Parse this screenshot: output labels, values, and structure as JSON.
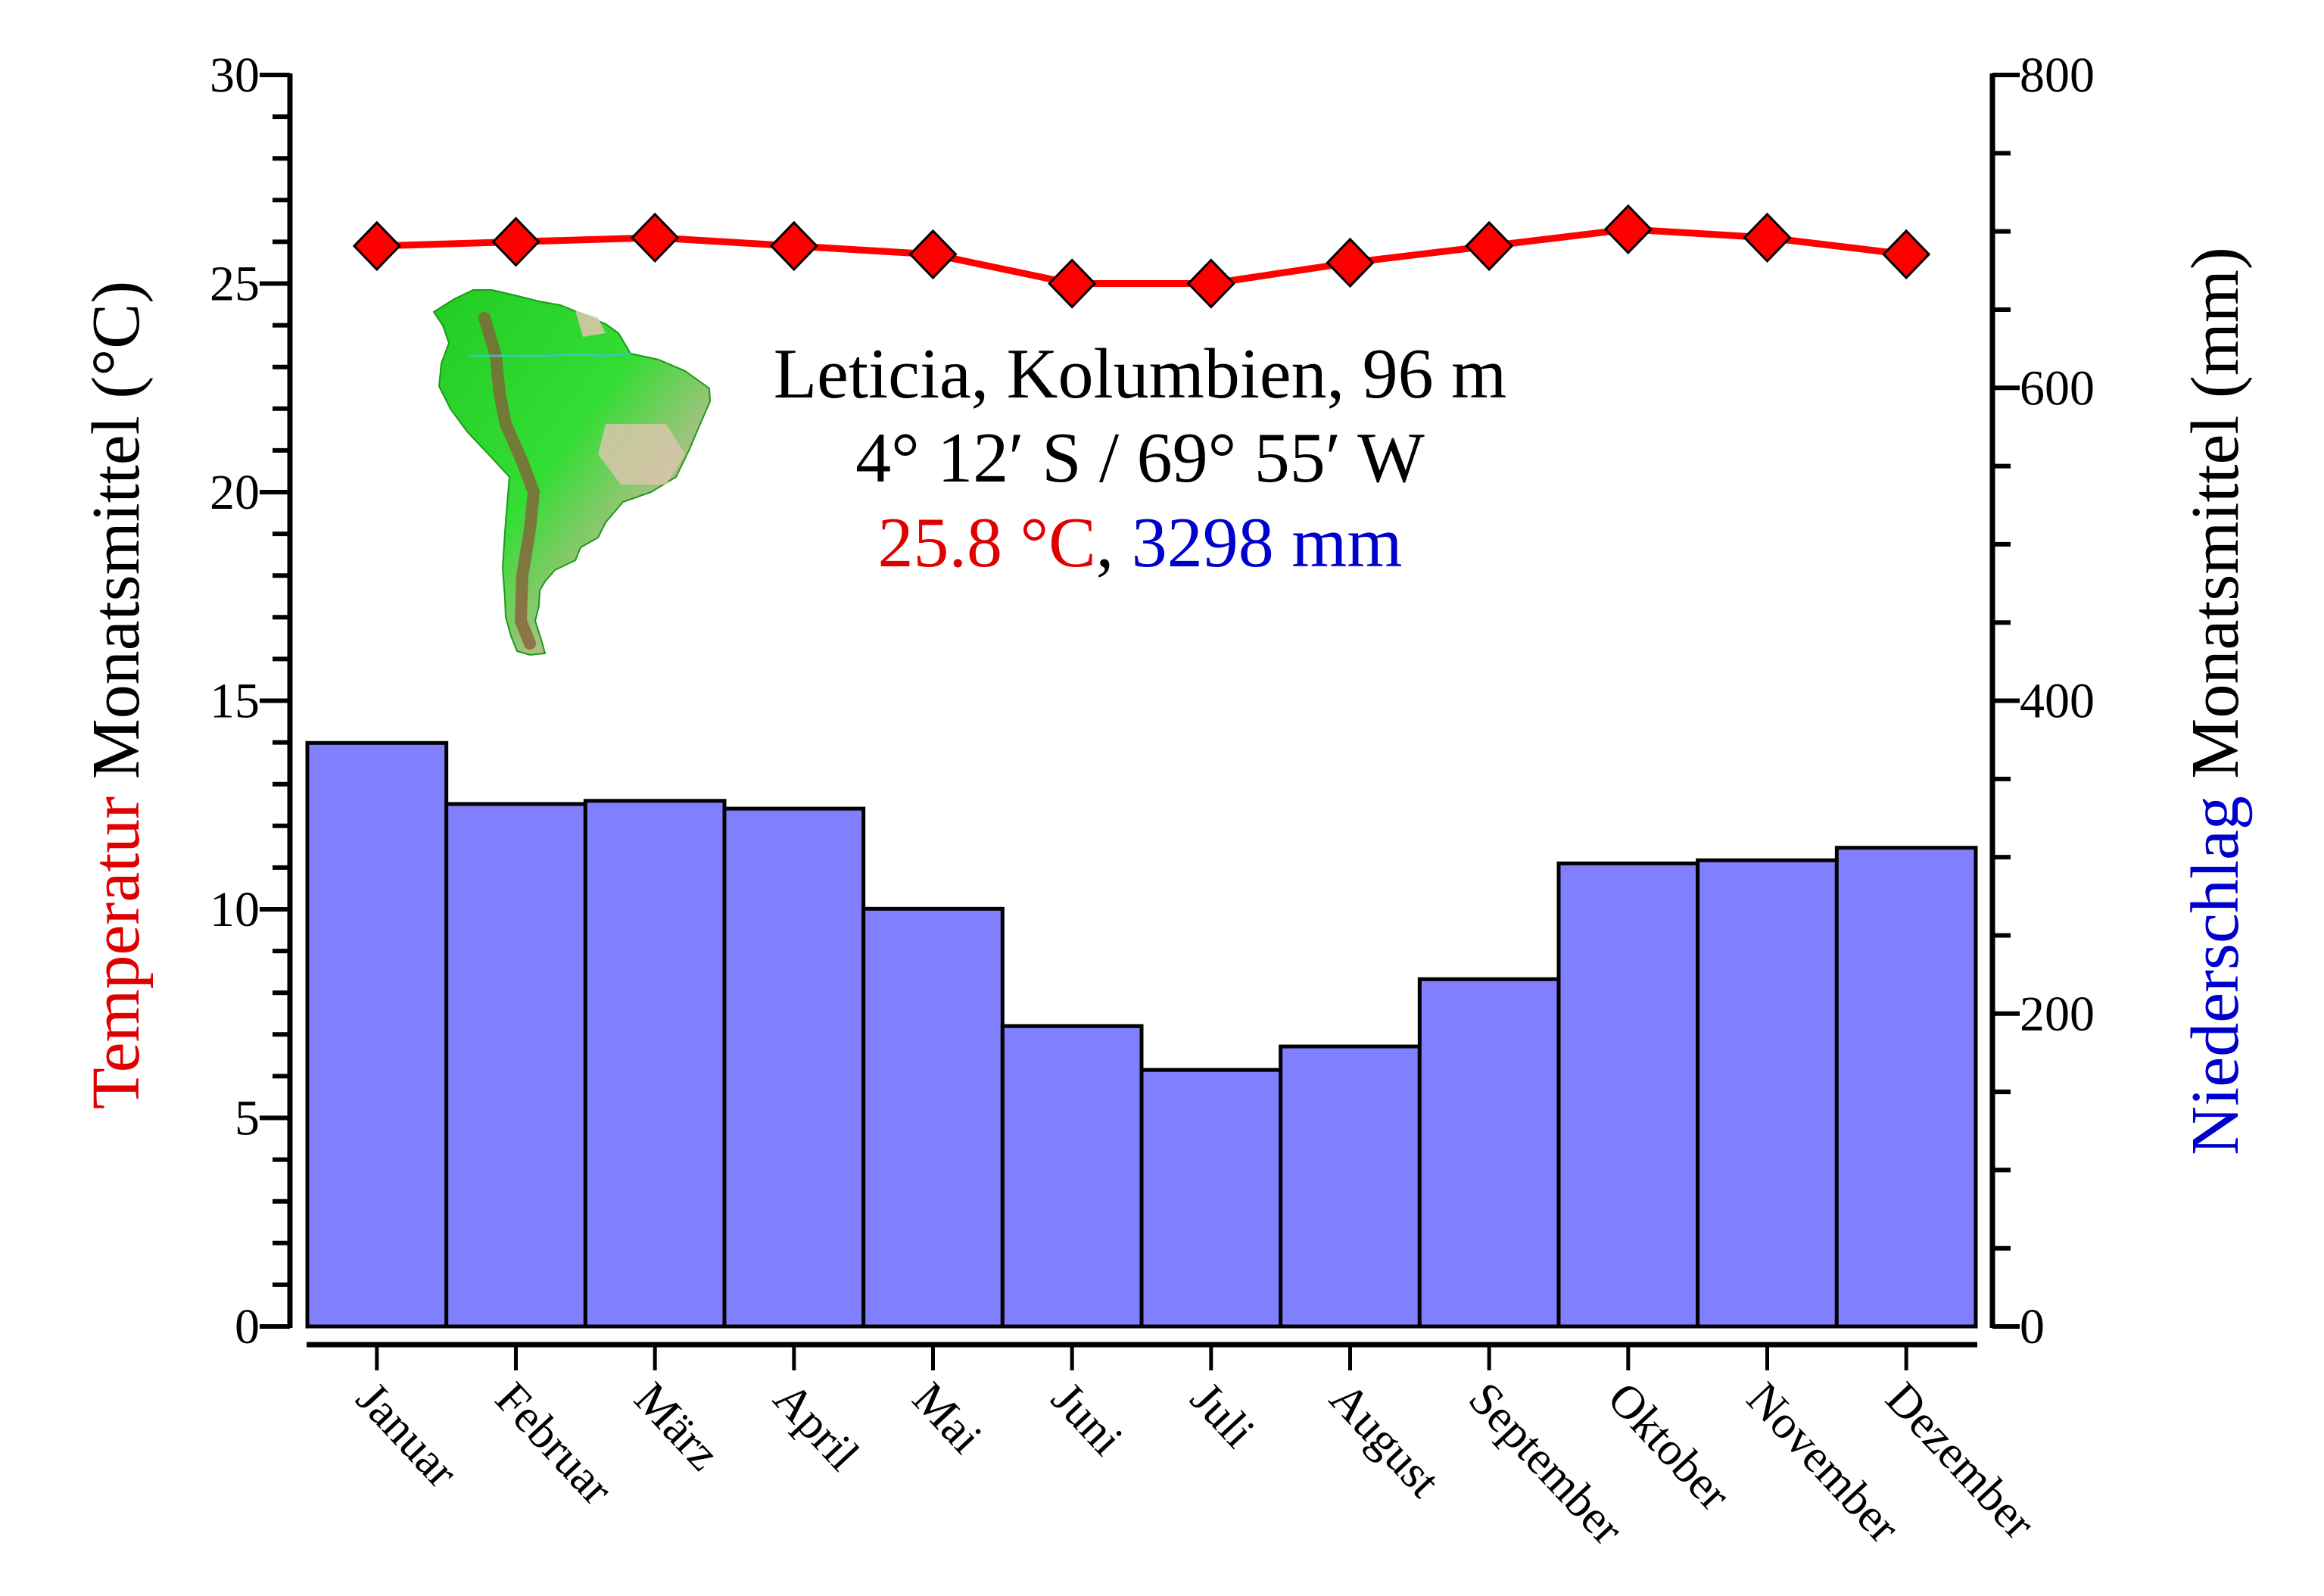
{
  "chart_data": {
    "type": "bar+line",
    "title": "Leticia, Kolumbien, 96 m",
    "subtitle": "4° 12′ S / 69° 55′ W",
    "summary": {
      "temperature_label": "25.8 °C",
      "separator": ", ",
      "precipitation_label": "3298 mm"
    },
    "categories": [
      "Januar",
      "Februar",
      "März",
      "April",
      "Mai",
      "Juni",
      "Juli",
      "August",
      "September",
      "Oktober",
      "November",
      "Dezember"
    ],
    "series": [
      {
        "name": "Temperatur",
        "type": "line",
        "axis": "left",
        "unit": "°C",
        "color": "#ff0000",
        "marker": "diamond",
        "values": [
          25.9,
          26.0,
          26.1,
          25.9,
          25.7,
          25.0,
          25.0,
          25.5,
          25.9,
          26.3,
          26.1,
          25.7
        ]
      },
      {
        "name": "Niederschlag",
        "type": "bar",
        "axis": "right",
        "unit": "mm",
        "color": "#8080ff",
        "values": [
          373,
          334,
          336,
          331,
          267,
          192,
          164,
          179,
          222,
          296,
          298,
          306
        ]
      }
    ],
    "y_left": {
      "label_colored": "Temperatur",
      "label_rest": " Monatsmittel (°C)",
      "label_color": "#e00000",
      "range": [
        0,
        30
      ],
      "major_ticks": [
        0,
        5,
        10,
        15,
        20,
        25,
        30
      ],
      "minor_step": 1
    },
    "y_right": {
      "label_colored": "Niederschlag",
      "label_rest": " Monatsmittel (mm)",
      "label_color": "#0000cc",
      "range": [
        0,
        800
      ],
      "major_ticks": [
        0,
        200,
        400,
        600,
        800
      ],
      "minor_step": 50
    },
    "xlabel": "",
    "grid": false,
    "legend": "none",
    "inset_map": "South America relief map",
    "colors": {
      "temperature": "#ff0000",
      "precipitation_fill": "#8080ff",
      "summary_temp_text": "#e00000",
      "summary_precip_text": "#0000cc",
      "axis": "#000000"
    }
  }
}
